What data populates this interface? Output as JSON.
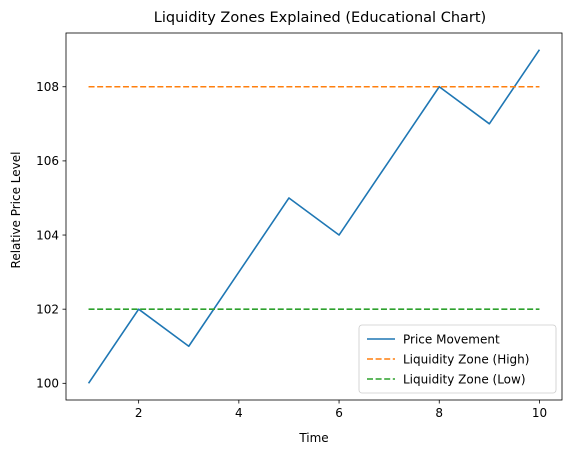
{
  "chart_data": {
    "type": "line",
    "title": "Liquidity Zones Explained (Educational Chart)",
    "xlabel": "Time",
    "ylabel": "Relative Price Level",
    "xlim": [
      0.55,
      10.45
    ],
    "ylim": [
      99.55,
      109.45
    ],
    "xticks": [
      2,
      4,
      6,
      8,
      10
    ],
    "yticks": [
      100,
      102,
      104,
      106,
      108
    ],
    "grid": false,
    "legend_position": "lower right",
    "series": [
      {
        "name": "Price Movement",
        "style": "solid",
        "color": "#1f77b4",
        "x": [
          1,
          2,
          3,
          4,
          5,
          6,
          7,
          8,
          9,
          10
        ],
        "y": [
          100,
          102,
          101,
          103,
          105,
          104,
          106,
          108,
          107,
          109
        ]
      },
      {
        "name": "Liquidity Zone (High)",
        "style": "dashed",
        "color": "#ff7f0e",
        "x": [
          1,
          10
        ],
        "y": [
          108,
          108
        ]
      },
      {
        "name": "Liquidity Zone (Low)",
        "style": "dashed",
        "color": "#2ca02c",
        "x": [
          1,
          10
        ],
        "y": [
          102,
          102
        ]
      }
    ]
  }
}
